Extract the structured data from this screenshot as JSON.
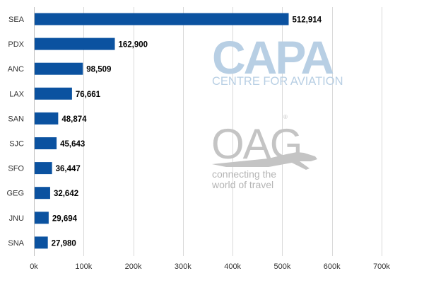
{
  "chart_data": {
    "type": "bar",
    "orientation": "horizontal",
    "categories": [
      "SEA",
      "PDX",
      "ANC",
      "LAX",
      "SAN",
      "SJC",
      "SFO",
      "GEG",
      "JNU",
      "SNA"
    ],
    "values": [
      512914,
      162900,
      98509,
      76661,
      48874,
      45643,
      36447,
      32642,
      29694,
      27980
    ],
    "value_labels": [
      "512,914",
      "162,900",
      "98,509",
      "76,661",
      "48,874",
      "45,643",
      "36,447",
      "32,642",
      "29,694",
      "27,980"
    ],
    "xlim": [
      0,
      700000
    ],
    "x_ticks": [
      0,
      100000,
      200000,
      300000,
      400000,
      500000,
      600000,
      700000
    ],
    "x_tick_labels": [
      "0k",
      "100k",
      "200k",
      "300k",
      "400k",
      "500k",
      "600k",
      "700k"
    ],
    "grid": "vertical",
    "bar_color": "#0b52a0",
    "title": "",
    "xlabel": "",
    "ylabel": ""
  },
  "watermarks": {
    "capa_logo": "CAPA",
    "capa_subtitle": "CENTRE FOR AVIATION",
    "oag_logo": "OAG",
    "oag_tagline_1": "connecting the",
    "oag_tagline_2": "world of travel",
    "capa_color": "#b8cfe4",
    "oag_color": "#c4c4c4"
  }
}
